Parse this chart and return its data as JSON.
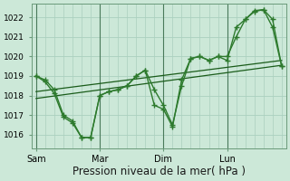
{
  "bg_color": "#cce8d8",
  "grid_color": "#aacfbe",
  "line_dark": "#1a5c1a",
  "line_mid": "#2d7a2d",
  "xlabel": "Pression niveau de la mer( hPa )",
  "xlabel_fontsize": 8.5,
  "ylim": [
    1015.3,
    1022.7
  ],
  "yticks": [
    1016,
    1017,
    1018,
    1019,
    1020,
    1021,
    1022
  ],
  "ytick_fontsize": 6.5,
  "xtick_fontsize": 7,
  "xtick_labels": [
    "Sam",
    "Mar",
    "Dim",
    "Lun"
  ],
  "xtick_positions": [
    0,
    28,
    56,
    84
  ],
  "vline_positions": [
    0,
    28,
    56,
    84
  ],
  "xlim": [
    -2,
    110
  ],
  "line1_x": [
    0,
    4,
    8,
    12,
    16,
    20,
    24,
    28,
    32,
    36,
    40,
    44,
    48,
    52,
    56,
    60,
    64,
    68,
    72,
    76,
    80,
    84,
    88,
    92,
    96,
    100,
    104,
    108
  ],
  "line1_y": [
    1019.0,
    1018.8,
    1018.3,
    1017.0,
    1016.7,
    1015.85,
    1015.85,
    1018.0,
    1018.2,
    1018.3,
    1018.5,
    1019.0,
    1019.3,
    1018.3,
    1017.5,
    1016.5,
    1018.5,
    1019.9,
    1020.0,
    1019.8,
    1020.0,
    1019.8,
    1021.5,
    1021.9,
    1022.3,
    1022.4,
    1021.5,
    1019.5
  ],
  "line2_x": [
    0,
    4,
    8,
    12,
    16,
    20,
    24,
    28,
    32,
    36,
    40,
    44,
    48,
    52,
    56,
    60,
    64,
    68,
    72,
    76,
    80,
    84,
    88,
    92,
    96,
    100,
    104,
    108
  ],
  "line2_y": [
    1019.0,
    1018.7,
    1018.1,
    1016.9,
    1016.6,
    1015.85,
    1015.85,
    1018.0,
    1018.2,
    1018.3,
    1018.5,
    1019.0,
    1019.3,
    1017.5,
    1017.3,
    1016.4,
    1018.8,
    1019.9,
    1020.0,
    1019.8,
    1020.0,
    1020.0,
    1021.0,
    1021.9,
    1022.35,
    1022.4,
    1021.9,
    1019.5
  ],
  "trend1_x": [
    0,
    108
  ],
  "trend1_y": [
    1018.2,
    1019.8
  ],
  "trend2_x": [
    0,
    108
  ],
  "trend2_y": [
    1017.85,
    1019.55
  ],
  "marker_style": "+"
}
